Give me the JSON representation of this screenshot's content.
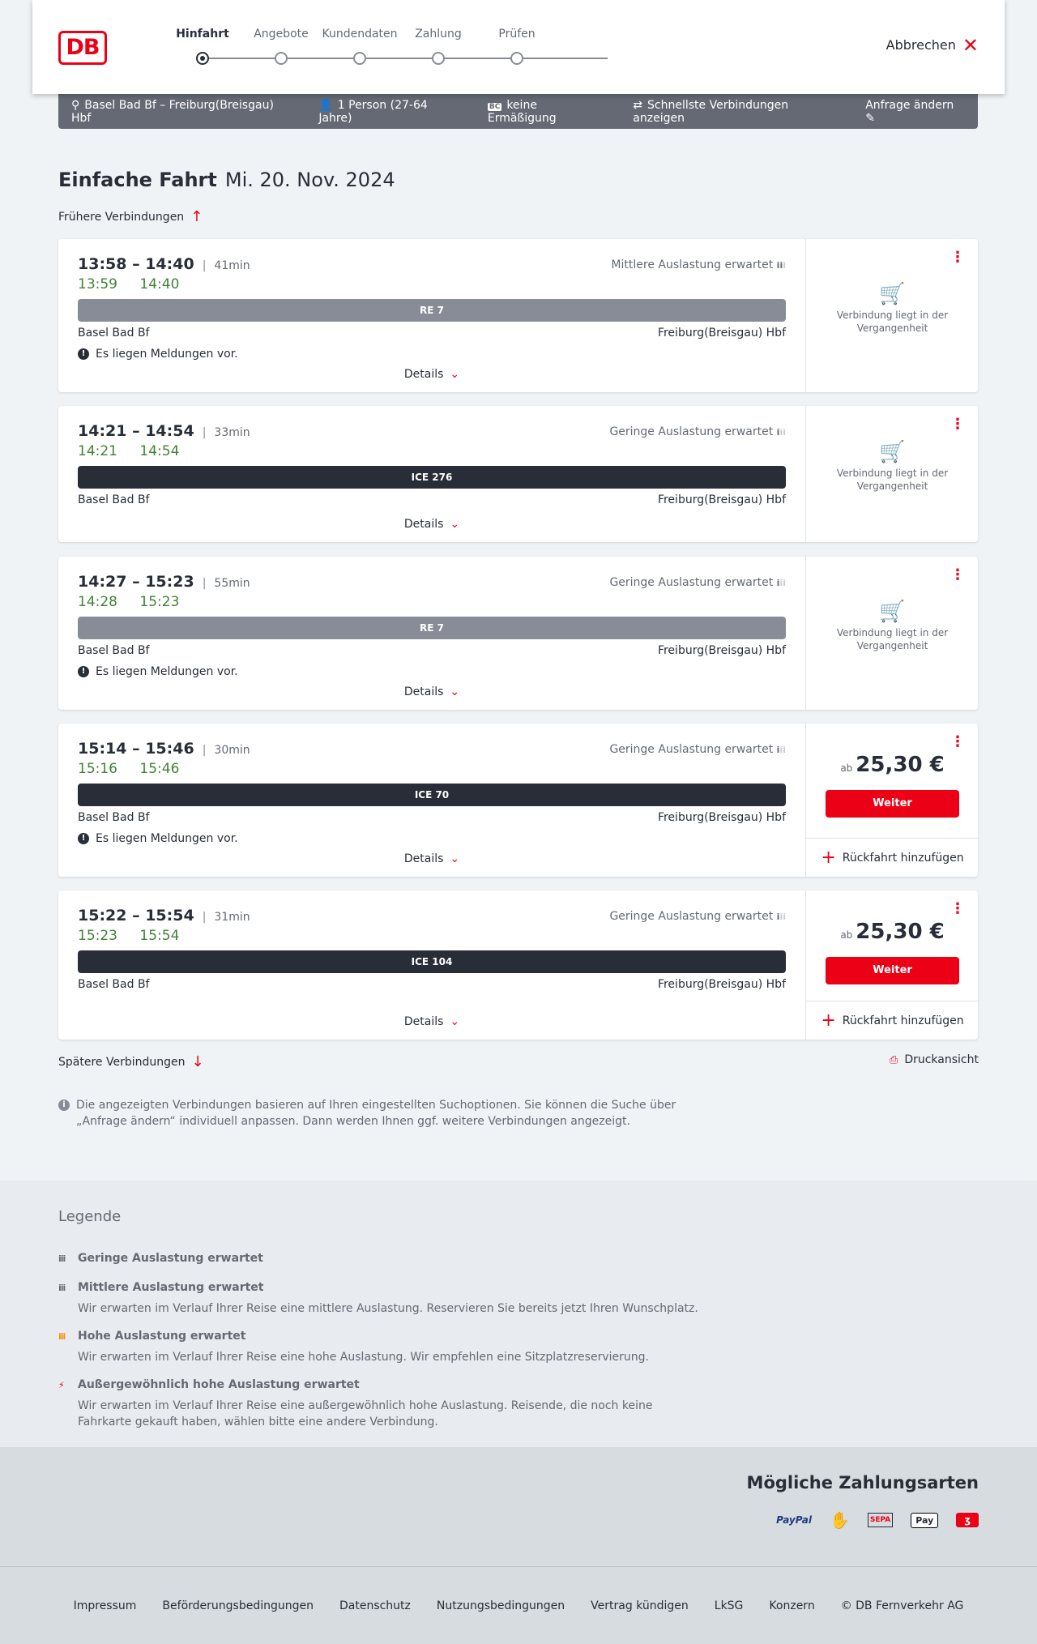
{
  "header": {
    "logo": "DB",
    "steps": [
      "Hinfahrt",
      "Angebote",
      "Kundendaten",
      "Zahlung",
      "Prüfen"
    ],
    "active_step": 0,
    "cancel": "Abbrechen"
  },
  "infobar": {
    "route": "Basel Bad Bf – Freiburg(Breisgau) Hbf",
    "persons": "1 Person (27-64 Jahre)",
    "discount_badge": "BC",
    "discount": "keine Ermäßigung",
    "fastest": "Schnellste Verbindungen anzeigen",
    "edit": "Anfrage ändern"
  },
  "title": {
    "type": "Einfache Fahrt",
    "date": "Mi. 20. Nov. 2024"
  },
  "earlier": "Frühere Verbindungen",
  "later": "Spätere Verbindungen",
  "print": "Druckansicht",
  "details_label": "Details",
  "past_label": "Verbindung liegt in der Vergangenheit",
  "price_prefix": "ab",
  "continue_label": "Weiter",
  "return_label": "Rückfahrt hinzufügen",
  "message_label": "Es liegen Meldungen vor.",
  "connections": [
    {
      "times": "13:58 – 14:40",
      "duration": "41min",
      "load": "Mittlere Auslastung erwartet",
      "realtime": "13:59 14:40",
      "train": "RE 7",
      "from": "Basel Bad Bf",
      "to": "Freiburg(Breisgau) Hbf",
      "message": true,
      "past": true
    },
    {
      "times": "14:21 – 14:54",
      "duration": "33min",
      "load": "Geringe Auslastung erwartet",
      "realtime": "14:21 14:54",
      "train": "ICE 276",
      "from": "Basel Bad Bf",
      "to": "Freiburg(Breisgau) Hbf",
      "message": false,
      "past": true
    },
    {
      "times": "14:27 – 15:23",
      "duration": "55min",
      "load": "Geringe Auslastung erwartet",
      "realtime": "14:28 15:23",
      "train": "RE 7",
      "from": "Basel Bad Bf",
      "to": "Freiburg(Breisgau) Hbf",
      "message": true,
      "past": true
    },
    {
      "times": "15:14 – 15:46",
      "duration": "30min",
      "load": "Geringe Auslastung erwartet",
      "realtime": "15:16 15:46",
      "train": "ICE 70",
      "from": "Basel Bad Bf",
      "to": "Freiburg(Breisgau) Hbf",
      "message": true,
      "past": false,
      "price": "25,30 €"
    },
    {
      "times": "15:22 – 15:54",
      "duration": "31min",
      "load": "Geringe Auslastung erwartet",
      "realtime": "15:23 15:54",
      "train": "ICE 104",
      "from": "Basel Bad Bf",
      "to": "Freiburg(Breisgau) Hbf",
      "message": false,
      "past": false,
      "price": "25,30 €"
    }
  ],
  "note": "Die angezeigten Verbindungen basieren auf Ihren eingestellten Suchoptionen. Sie können die Suche über „Anfrage ändern“ individuell anpassen. Dann werden Ihnen ggf. weitere Verbindungen angezeigt.",
  "legend": {
    "title": "Legende",
    "items": [
      {
        "title": "Geringe Auslastung erwartet",
        "text": "",
        "color": "#646973"
      },
      {
        "title": "Mittlere Auslastung erwartet",
        "text": "Wir erwarten im Verlauf Ihrer Reise eine mittlere Auslastung. Reservieren Sie bereits jetzt Ihren Wunschplatz.",
        "color": "#646973"
      },
      {
        "title": "Hohe Auslastung erwartet",
        "text": "Wir erwarten im Verlauf Ihrer Reise eine hohe Auslastung. Wir empfehlen eine Sitzplatzreservierung.",
        "color": "#f39200"
      },
      {
        "title": "Außergewöhnlich hohe Auslastung erwartet",
        "text": "Wir erwarten im Verlauf Ihrer Reise eine außergewöhnlich hohe Auslastung. Reisende, die noch keine Fahrkarte gekauft haben, wählen bitte eine andere Verbindung.",
        "color": "#ec0016"
      }
    ]
  },
  "payment": {
    "title": "Mögliche Zahlungsarten",
    "methods": [
      "PayPal",
      "Kreditkarte",
      "SEPA",
      "Pay",
      "Rechnung"
    ]
  },
  "footer": [
    "Impressum",
    "Beförderungsbedingungen",
    "Datenschutz",
    "Nutzungsbedingungen",
    "Vertrag kündigen",
    "LkSG",
    "Konzern",
    "© DB Fernverkehr AG"
  ],
  "colors": {
    "accent": "#ec0016",
    "realtime": "#408335",
    "regional": "#878c96",
    "longdistance": "#282d37"
  }
}
